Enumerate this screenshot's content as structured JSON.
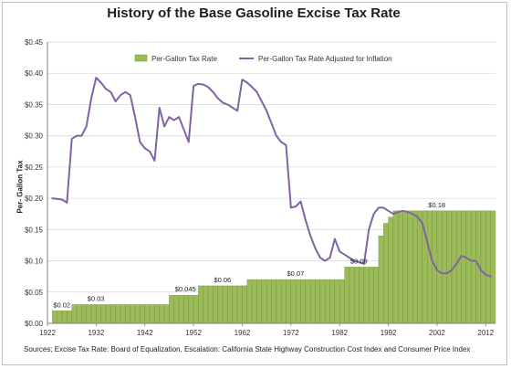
{
  "chart_data": {
    "type": "bar",
    "title": "History of the Base Gasoline Excise Tax Rate",
    "ylabel": "Per- Gallon Tax",
    "xlabel": "",
    "source": "Sources; Excise Tax Rate: Board of Equalization. Escalation: California State Highway Construction Cost Index and Consumer Price Index",
    "ylim": [
      0,
      0.45
    ],
    "xlim": [
      1922,
      2014
    ],
    "y_ticks": [
      "$0.00",
      "$0.05",
      "$0.10",
      "$0.15",
      "$0.20",
      "$0.25",
      "$0.30",
      "$0.35",
      "$0.40",
      "$0.45"
    ],
    "x_ticks": [
      "1922",
      "1932",
      "1942",
      "1952",
      "1962",
      "1972",
      "1982",
      "1992",
      "2002",
      "2012"
    ],
    "legend_position": "top",
    "grid": true,
    "colors": {
      "bar": "#9bbb59",
      "bar_edge": "#6f8f3a",
      "line": "#8064a2",
      "grid": "#d9d9d9"
    },
    "series": [
      {
        "name": "Per-Gallon Tax Rate",
        "kind": "bar",
        "steps": [
          {
            "from": 1923,
            "to": 1927,
            "value": 0.02
          },
          {
            "from": 1927,
            "to": 1947,
            "value": 0.03
          },
          {
            "from": 1947,
            "to": 1953,
            "value": 0.045
          },
          {
            "from": 1953,
            "to": 1963,
            "value": 0.06
          },
          {
            "from": 1963,
            "to": 1983,
            "value": 0.07
          },
          {
            "from": 1983,
            "to": 1990,
            "value": 0.09
          },
          {
            "from": 1990,
            "to": 1991,
            "value": 0.14
          },
          {
            "from": 1991,
            "to": 1992,
            "value": 0.16
          },
          {
            "from": 1992,
            "to": 1993,
            "value": 0.17
          },
          {
            "from": 1993,
            "to": 1994,
            "value": 0.18
          },
          {
            "from": 1994,
            "to": 2014,
            "value": 0.18
          }
        ]
      },
      {
        "name": "Per-Gallon Tax Rate Adjusted for Inflation",
        "kind": "line",
        "x": [
          1923,
          1925,
          1926,
          1927,
          1928,
          1929,
          1930,
          1931,
          1932,
          1933,
          1934,
          1935,
          1936,
          1937,
          1938,
          1939,
          1940,
          1941,
          1942,
          1943,
          1944,
          1945,
          1946,
          1947,
          1948,
          1949,
          1950,
          1951,
          1952,
          1953,
          1954,
          1955,
          1956,
          1957,
          1958,
          1959,
          1960,
          1961,
          1962,
          1963,
          1964,
          1965,
          1966,
          1967,
          1968,
          1969,
          1970,
          1971,
          1972,
          1973,
          1974,
          1975,
          1976,
          1977,
          1978,
          1979,
          1980,
          1981,
          1982,
          1983,
          1984,
          1985,
          1986,
          1987,
          1988,
          1989,
          1990,
          1991,
          1992,
          1993,
          1994,
          1995,
          1996,
          1997,
          1998,
          1999,
          2000,
          2001,
          2002,
          2003,
          2004,
          2005,
          2006,
          2007,
          2008,
          2009,
          2010,
          2011,
          2012,
          2013
        ],
        "values": [
          0.2,
          0.198,
          0.193,
          0.295,
          0.3,
          0.3,
          0.315,
          0.36,
          0.393,
          0.385,
          0.375,
          0.37,
          0.355,
          0.365,
          0.37,
          0.365,
          0.33,
          0.29,
          0.28,
          0.275,
          0.26,
          0.345,
          0.315,
          0.33,
          0.325,
          0.33,
          0.31,
          0.29,
          0.38,
          0.383,
          0.382,
          0.378,
          0.37,
          0.36,
          0.353,
          0.35,
          0.345,
          0.34,
          0.39,
          0.385,
          0.378,
          0.37,
          0.355,
          0.34,
          0.32,
          0.3,
          0.29,
          0.285,
          0.185,
          0.187,
          0.195,
          0.165,
          0.14,
          0.12,
          0.105,
          0.1,
          0.105,
          0.135,
          0.115,
          0.11,
          0.105,
          0.1,
          0.098,
          0.095,
          0.15,
          0.175,
          0.185,
          0.185,
          0.18,
          0.175,
          0.178,
          0.18,
          0.178,
          0.175,
          0.17,
          0.16,
          0.13,
          0.1,
          0.085,
          0.08,
          0.08,
          0.085,
          0.095,
          0.108,
          0.105,
          0.1,
          0.1,
          0.085,
          0.078,
          0.075
        ]
      }
    ],
    "data_labels": [
      {
        "text": "$0.02",
        "x": 1923,
        "y": 0.02
      },
      {
        "text": "$0.03",
        "x": 1930,
        "y": 0.03
      },
      {
        "text": "$0.045",
        "x": 1948,
        "y": 0.045
      },
      {
        "text": "$0.06",
        "x": 1956,
        "y": 0.06
      },
      {
        "text": "$0.07",
        "x": 1971,
        "y": 0.07
      },
      {
        "text": "$0.09",
        "x": 1984,
        "y": 0.09
      },
      {
        "text": "$0.18",
        "x": 2000,
        "y": 0.18
      }
    ]
  }
}
